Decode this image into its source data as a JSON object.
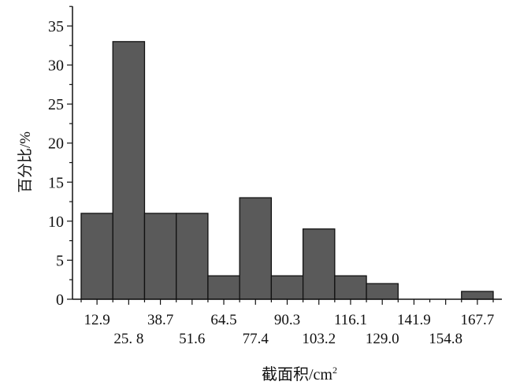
{
  "chart_data": {
    "type": "bar",
    "subtype": "histogram",
    "xlabel": "截面积/cm",
    "xlabel_sup": "2",
    "ylabel": "百分比/%",
    "categories": [
      "12.9",
      "25. 8",
      "38.7",
      "51.6",
      "64.5",
      "77.4",
      "90.3",
      "103.2",
      "116.1",
      "129.0",
      "141.9",
      "154.8",
      "167.7"
    ],
    "values": [
      11,
      33,
      11,
      11,
      3,
      13,
      3,
      9,
      3,
      2,
      0,
      0,
      1
    ],
    "ylim": [
      0,
      37
    ],
    "yticks": [
      "0",
      "5",
      "10",
      "15",
      "20",
      "25",
      "30",
      "35"
    ],
    "grid": false,
    "legend": "none",
    "bar_color": "#5a5a5a",
    "bar_edge_color": "#111111"
  }
}
